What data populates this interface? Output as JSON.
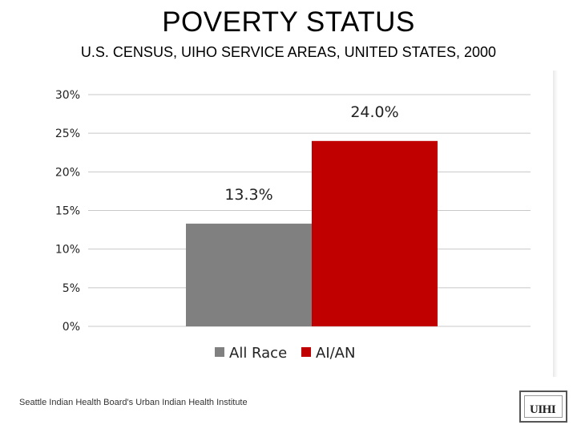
{
  "slide": {
    "title": "POVERTY STATUS",
    "subtitle": "U.S. CENSUS, UIHO SERVICE AREAS, UNITED STATES, 2000",
    "footer": "Seattle Indian Health Board's Urban Indian Health Institute",
    "logo_text": "UIHI"
  },
  "chart_data": {
    "type": "bar",
    "categories": [
      ""
    ],
    "series": [
      {
        "name": "All Race",
        "values": [
          13.3
        ],
        "color": "#808080",
        "label": "13.3%"
      },
      {
        "name": "AI/AN",
        "values": [
          24.0
        ],
        "color": "#c00000",
        "label": "24.0%"
      }
    ],
    "ylim": [
      0,
      30
    ],
    "yticks": [
      0,
      5,
      10,
      15,
      20,
      25,
      30
    ],
    "ytick_labels": [
      "0%",
      "5%",
      "10%",
      "15%",
      "20%",
      "25%",
      "30%"
    ],
    "grid": true,
    "legend_position": "bottom",
    "title": "",
    "xlabel": "",
    "ylabel": ""
  }
}
